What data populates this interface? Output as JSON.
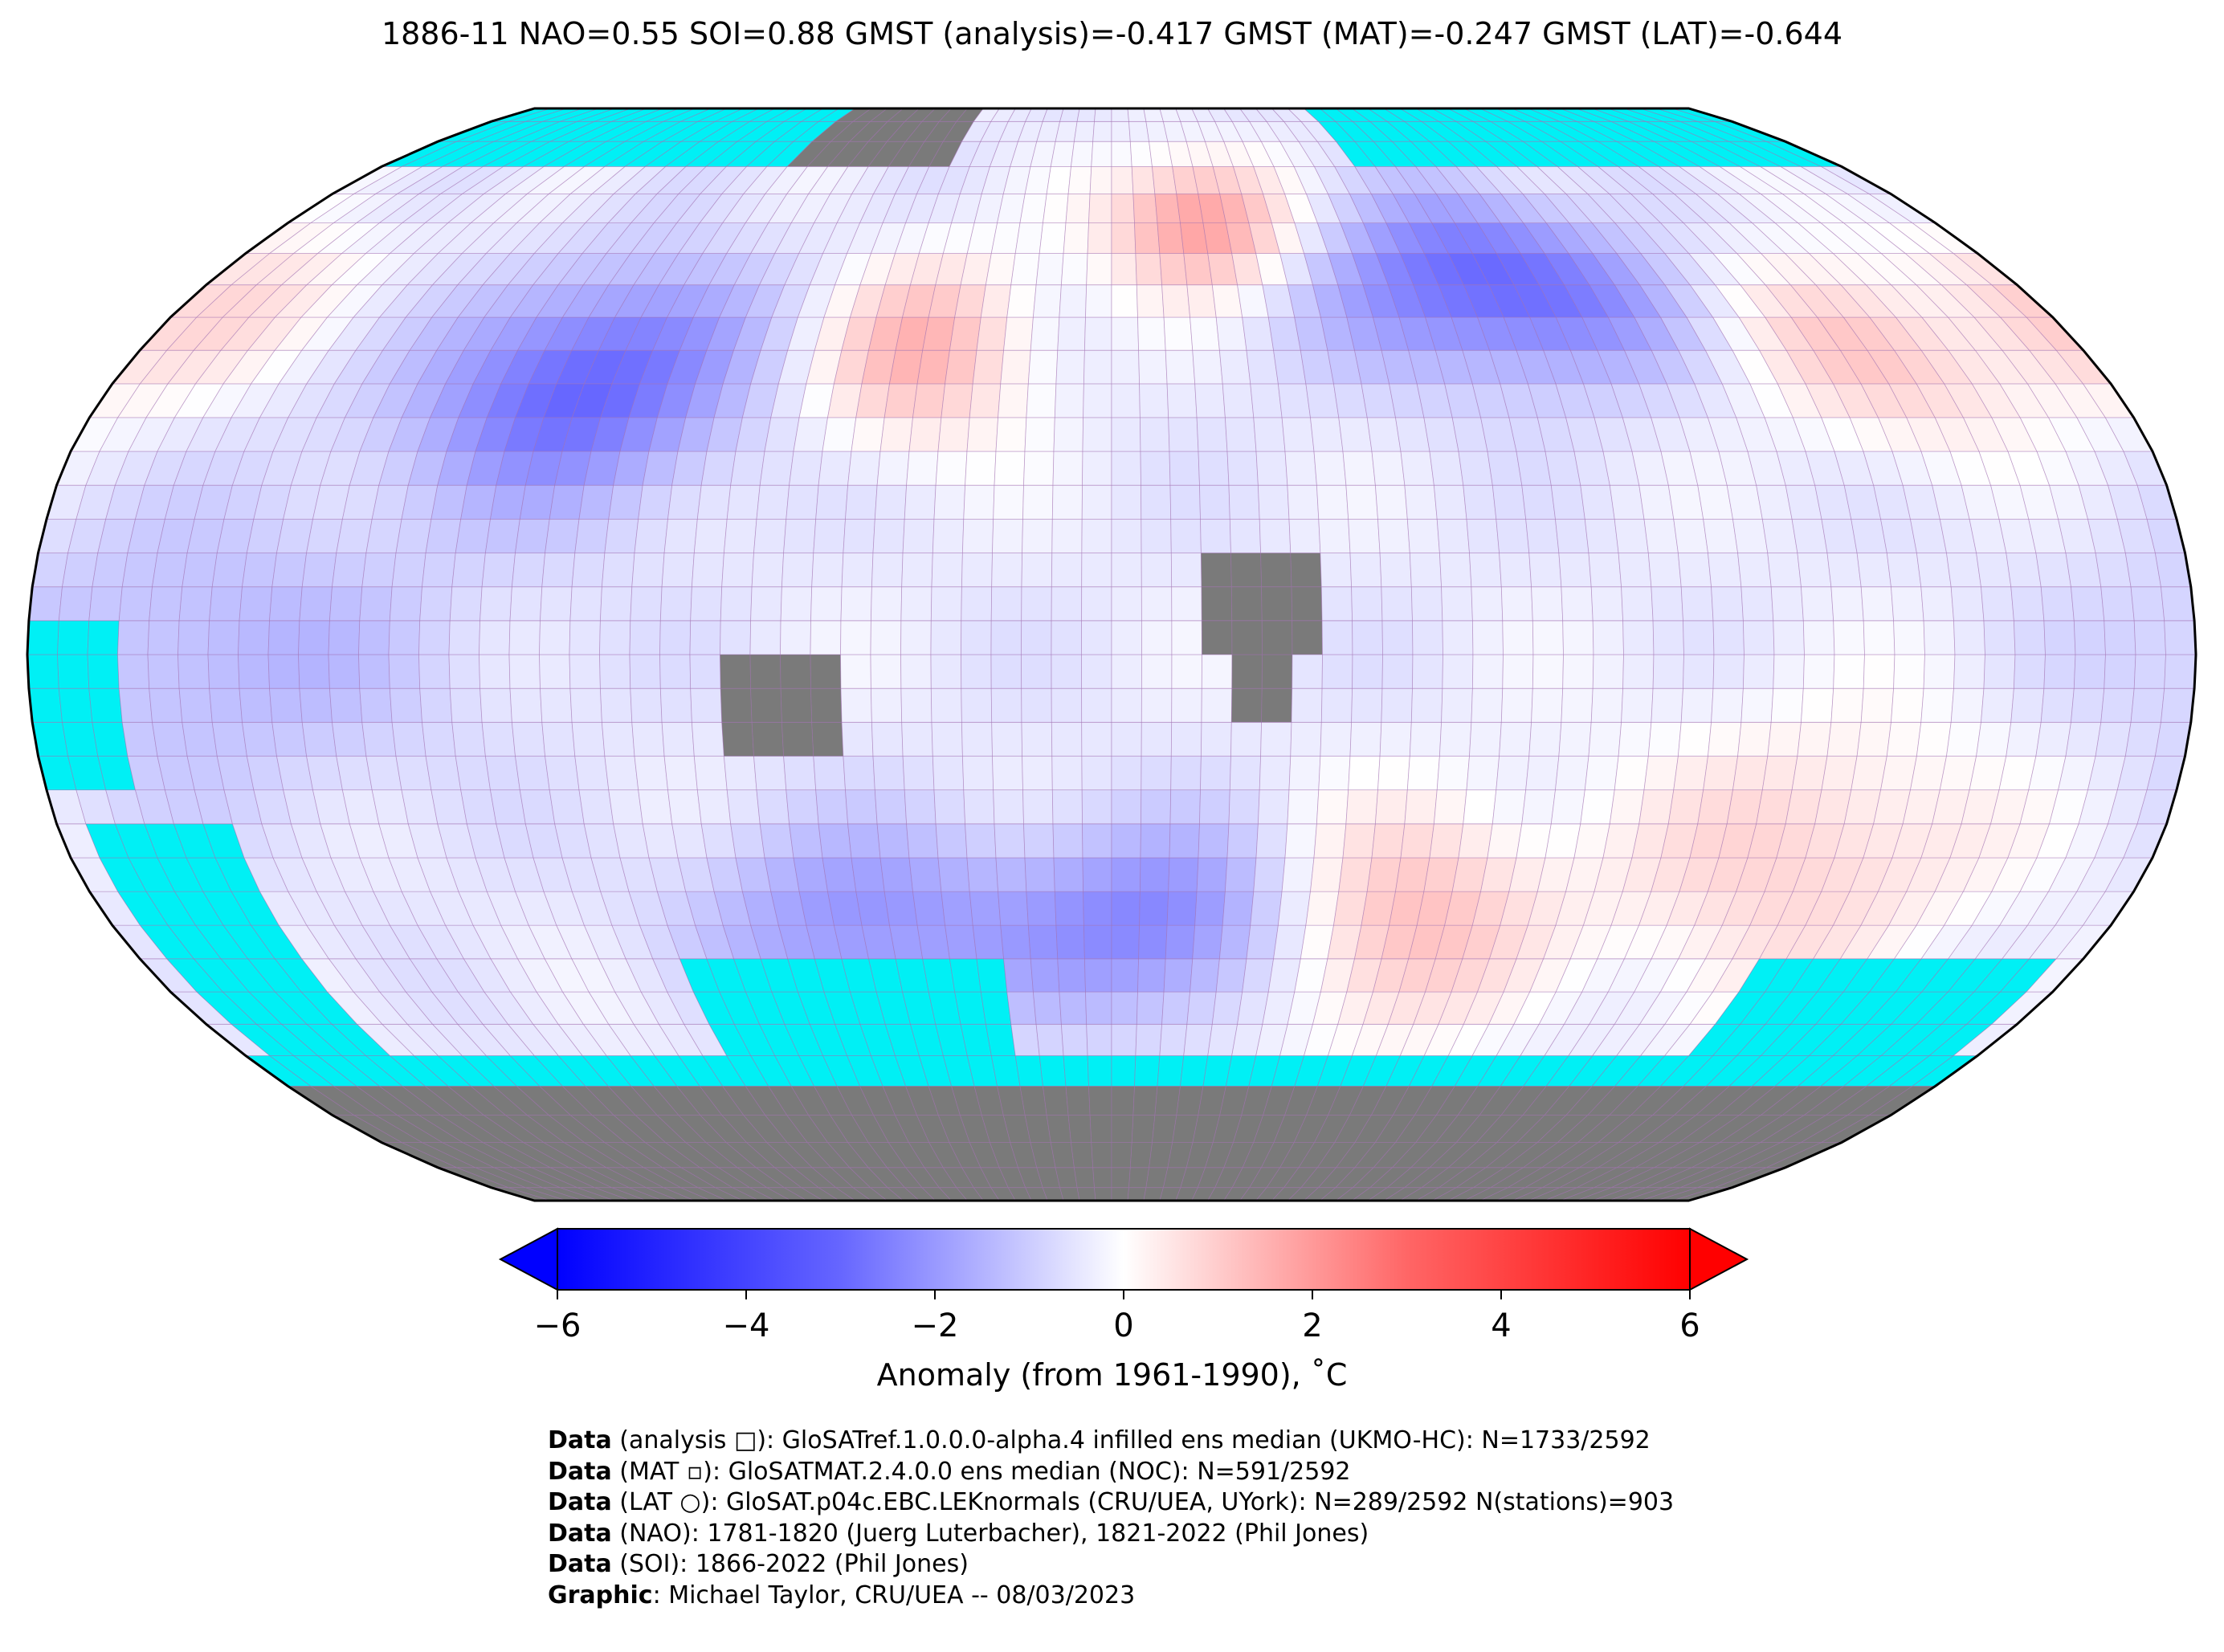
{
  "title": "1886-11 NAO=0.55 SOI=0.88 GMST (analysis)=-0.417 GMST (MAT)=-0.247 GMST (LAT)=-0.644",
  "colorbar": {
    "label": "Anomaly (from 1961-1990), ˚C",
    "ticks": [
      "−6",
      "−4",
      "−2",
      "0",
      "2",
      "4",
      "6"
    ],
    "tick_values": [
      -6,
      -4,
      -2,
      0,
      2,
      4,
      6
    ],
    "range": [
      -6,
      6
    ],
    "colors": {
      "cold": "#0000ff",
      "neutral": "#ffffff",
      "warm": "#ff0000"
    }
  },
  "map": {
    "projection": "Robinson",
    "grid": "5x5 degree",
    "colors": {
      "ocean_missing": "#00f0f5",
      "land_missing": "#7a7a7a",
      "gridline": "#a070b0",
      "coast": "#000000"
    }
  },
  "credits": [
    {
      "bold": "Data",
      "rest": " (analysis □): GloSATref.1.0.0.0-alpha.4 infilled ens median (UKMO-HC): N=1733/2592"
    },
    {
      "bold": "Data",
      "rest": " (MAT ▫): GloSATMAT.2.4.0.0 ens median (NOC): N=591/2592"
    },
    {
      "bold": "Data",
      "rest": " (LAT ○): GloSAT.p04c.EBC.LEKnormals (CRU/UEA, UYork): N=289/2592 N(stations)=903"
    },
    {
      "bold": "Data",
      "rest": " (NAO): 1781-1820 (Juerg Luterbacher), 1821-2022 (Phil Jones)"
    },
    {
      "bold": "Data",
      "rest": " (SOI): 1866-2022 (Phil Jones)"
    },
    {
      "bold": "Graphic",
      "rest": ": Michael Taylor, CRU/UEA -- 08/03/2023"
    }
  ]
}
